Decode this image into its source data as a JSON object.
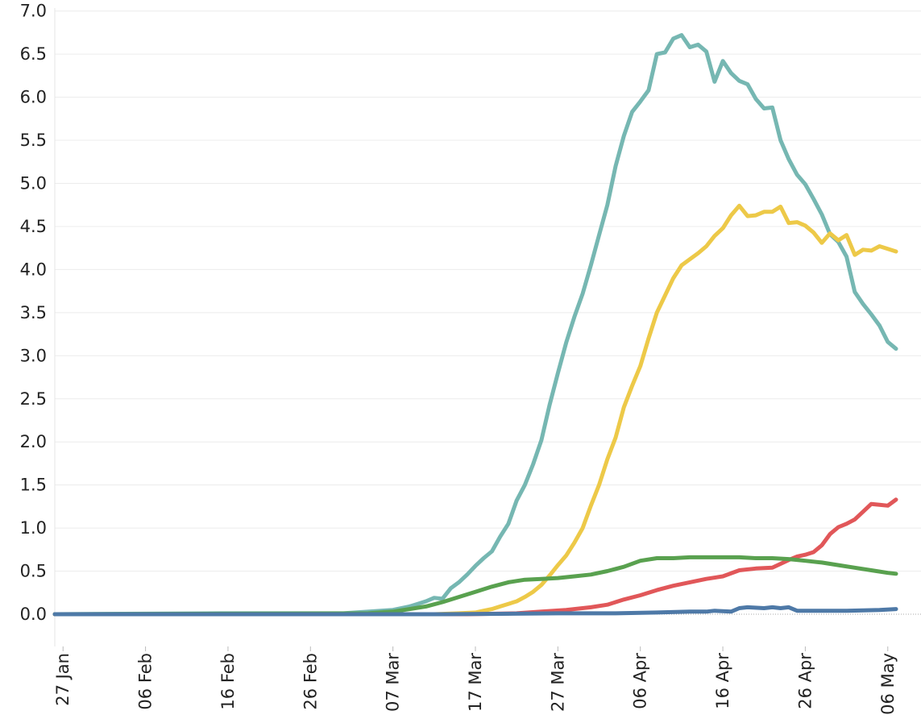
{
  "chart_data": {
    "type": "line",
    "title": "",
    "xlabel": "",
    "ylabel": "",
    "x_start": "2020-01-26",
    "x_end": "2020-05-07",
    "xlim": [
      "2020-01-26",
      "2020-05-07"
    ],
    "ylim": [
      -0.4,
      7.0
    ],
    "y_ticks": [
      "0.0",
      "0.5",
      "1.0",
      "1.5",
      "2.0",
      "2.5",
      "3.0",
      "3.5",
      "4.0",
      "4.5",
      "5.0",
      "5.5",
      "6.0",
      "6.5",
      "7.0"
    ],
    "x_tick_labels": [
      "27 Jan",
      "06 Feb",
      "16 Feb",
      "26 Feb",
      "07 Mar",
      "17 Mar",
      "27 Mar",
      "06 Apr",
      "16 Apr",
      "26 Apr",
      "06 May"
    ],
    "x_tick_dates": [
      "2020-01-27",
      "2020-02-06",
      "2020-02-16",
      "2020-02-26",
      "2020-03-07",
      "2020-03-17",
      "2020-03-27",
      "2020-04-06",
      "2020-04-16",
      "2020-04-26",
      "2020-05-06"
    ],
    "grid": true,
    "legend": "none",
    "series": [
      {
        "color": "#76b7b2",
        "points": [
          [
            "2020-01-26",
            0
          ],
          [
            "2020-02-15",
            0.01
          ],
          [
            "2020-03-01",
            0.01
          ],
          [
            "2020-03-07",
            0.05
          ],
          [
            "2020-03-09",
            0.09
          ],
          [
            "2020-03-10",
            0.12
          ],
          [
            "2020-03-11",
            0.15
          ],
          [
            "2020-03-12",
            0.19
          ],
          [
            "2020-03-13",
            0.18
          ],
          [
            "2020-03-14",
            0.3
          ],
          [
            "2020-03-15",
            0.37
          ],
          [
            "2020-03-16",
            0.46
          ],
          [
            "2020-03-17",
            0.56
          ],
          [
            "2020-03-18",
            0.65
          ],
          [
            "2020-03-19",
            0.73
          ],
          [
            "2020-03-20",
            0.9
          ],
          [
            "2020-03-21",
            1.05
          ],
          [
            "2020-03-22",
            1.32
          ],
          [
            "2020-03-23",
            1.5
          ],
          [
            "2020-03-24",
            1.74
          ],
          [
            "2020-03-25",
            2.02
          ],
          [
            "2020-03-26",
            2.43
          ],
          [
            "2020-03-27",
            2.8
          ],
          [
            "2020-03-28",
            3.15
          ],
          [
            "2020-03-29",
            3.45
          ],
          [
            "2020-03-30",
            3.72
          ],
          [
            "2020-03-31",
            4.05
          ],
          [
            "2020-04-01",
            4.4
          ],
          [
            "2020-04-02",
            4.75
          ],
          [
            "2020-04-03",
            5.2
          ],
          [
            "2020-04-04",
            5.55
          ],
          [
            "2020-04-05",
            5.83
          ],
          [
            "2020-04-06",
            5.95
          ],
          [
            "2020-04-07",
            6.08
          ],
          [
            "2020-04-08",
            6.5
          ],
          [
            "2020-04-09",
            6.52
          ],
          [
            "2020-04-10",
            6.68
          ],
          [
            "2020-04-11",
            6.72
          ],
          [
            "2020-04-12",
            6.58
          ],
          [
            "2020-04-13",
            6.61
          ],
          [
            "2020-04-14",
            6.53
          ],
          [
            "2020-04-15",
            6.18
          ],
          [
            "2020-04-16",
            6.42
          ],
          [
            "2020-04-17",
            6.28
          ],
          [
            "2020-04-18",
            6.19
          ],
          [
            "2020-04-19",
            6.15
          ],
          [
            "2020-04-20",
            5.98
          ],
          [
            "2020-04-21",
            5.87
          ],
          [
            "2020-04-22",
            5.88
          ],
          [
            "2020-04-23",
            5.5
          ],
          [
            "2020-04-24",
            5.28
          ],
          [
            "2020-04-25",
            5.1
          ],
          [
            "2020-04-26",
            4.99
          ],
          [
            "2020-04-27",
            4.82
          ],
          [
            "2020-04-28",
            4.64
          ],
          [
            "2020-04-29",
            4.41
          ],
          [
            "2020-04-30",
            4.32
          ],
          [
            "2020-05-01",
            4.15
          ],
          [
            "2020-05-02",
            3.74
          ],
          [
            "2020-05-03",
            3.6
          ],
          [
            "2020-05-04",
            3.48
          ],
          [
            "2020-05-05",
            3.35
          ],
          [
            "2020-05-06",
            3.16
          ],
          [
            "2020-05-07",
            3.08
          ]
        ]
      },
      {
        "color": "#edc948",
        "points": [
          [
            "2020-01-26",
            0
          ],
          [
            "2020-03-12",
            0.0
          ],
          [
            "2020-03-15",
            0.01
          ],
          [
            "2020-03-17",
            0.02
          ],
          [
            "2020-03-18",
            0.04
          ],
          [
            "2020-03-19",
            0.06
          ],
          [
            "2020-03-20",
            0.09
          ],
          [
            "2020-03-21",
            0.12
          ],
          [
            "2020-03-22",
            0.15
          ],
          [
            "2020-03-23",
            0.2
          ],
          [
            "2020-03-24",
            0.26
          ],
          [
            "2020-03-25",
            0.34
          ],
          [
            "2020-03-26",
            0.45
          ],
          [
            "2020-03-27",
            0.57
          ],
          [
            "2020-03-28",
            0.68
          ],
          [
            "2020-03-29",
            0.83
          ],
          [
            "2020-03-30",
            1.0
          ],
          [
            "2020-03-31",
            1.26
          ],
          [
            "2020-04-01",
            1.5
          ],
          [
            "2020-04-02",
            1.8
          ],
          [
            "2020-04-03",
            2.05
          ],
          [
            "2020-04-04",
            2.4
          ],
          [
            "2020-04-05",
            2.65
          ],
          [
            "2020-04-06",
            2.88
          ],
          [
            "2020-04-07",
            3.2
          ],
          [
            "2020-04-08",
            3.5
          ],
          [
            "2020-04-09",
            3.7
          ],
          [
            "2020-04-10",
            3.9
          ],
          [
            "2020-04-11",
            4.05
          ],
          [
            "2020-04-12",
            4.12
          ],
          [
            "2020-04-13",
            4.19
          ],
          [
            "2020-04-14",
            4.27
          ],
          [
            "2020-04-15",
            4.39
          ],
          [
            "2020-04-16",
            4.48
          ],
          [
            "2020-04-17",
            4.63
          ],
          [
            "2020-04-18",
            4.74
          ],
          [
            "2020-04-19",
            4.62
          ],
          [
            "2020-04-20",
            4.63
          ],
          [
            "2020-04-21",
            4.67
          ],
          [
            "2020-04-22",
            4.67
          ],
          [
            "2020-04-23",
            4.73
          ],
          [
            "2020-04-24",
            4.54
          ],
          [
            "2020-04-25",
            4.55
          ],
          [
            "2020-04-26",
            4.51
          ],
          [
            "2020-04-27",
            4.43
          ],
          [
            "2020-04-28",
            4.31
          ],
          [
            "2020-04-29",
            4.42
          ],
          [
            "2020-04-30",
            4.34
          ],
          [
            "2020-05-01",
            4.4
          ],
          [
            "2020-05-02",
            4.17
          ],
          [
            "2020-05-03",
            4.23
          ],
          [
            "2020-05-04",
            4.22
          ],
          [
            "2020-05-05",
            4.27
          ],
          [
            "2020-05-06",
            4.24
          ],
          [
            "2020-05-07",
            4.21
          ]
        ]
      },
      {
        "color": "#e15759",
        "points": [
          [
            "2020-01-26",
            0
          ],
          [
            "2020-03-16",
            0.0
          ],
          [
            "2020-03-22",
            0.01
          ],
          [
            "2020-03-25",
            0.03
          ],
          [
            "2020-03-28",
            0.05
          ],
          [
            "2020-03-31",
            0.08
          ],
          [
            "2020-04-02",
            0.11
          ],
          [
            "2020-04-04",
            0.17
          ],
          [
            "2020-04-06",
            0.22
          ],
          [
            "2020-04-08",
            0.28
          ],
          [
            "2020-04-10",
            0.33
          ],
          [
            "2020-04-12",
            0.37
          ],
          [
            "2020-04-14",
            0.41
          ],
          [
            "2020-04-16",
            0.44
          ],
          [
            "2020-04-18",
            0.51
          ],
          [
            "2020-04-20",
            0.53
          ],
          [
            "2020-04-22",
            0.54
          ],
          [
            "2020-04-24",
            0.63
          ],
          [
            "2020-04-25",
            0.67
          ],
          [
            "2020-04-26",
            0.69
          ],
          [
            "2020-04-27",
            0.72
          ],
          [
            "2020-04-28",
            0.8
          ],
          [
            "2020-04-29",
            0.93
          ],
          [
            "2020-04-30",
            1.01
          ],
          [
            "2020-05-01",
            1.05
          ],
          [
            "2020-05-02",
            1.1
          ],
          [
            "2020-05-03",
            1.19
          ],
          [
            "2020-05-04",
            1.28
          ],
          [
            "2020-05-05",
            1.27
          ],
          [
            "2020-05-06",
            1.26
          ],
          [
            "2020-05-07",
            1.33
          ]
        ]
      },
      {
        "color": "#59a14f",
        "points": [
          [
            "2020-01-26",
            0
          ],
          [
            "2020-03-04",
            0.01
          ],
          [
            "2020-03-07",
            0.03
          ],
          [
            "2020-03-09",
            0.06
          ],
          [
            "2020-03-11",
            0.09
          ],
          [
            "2020-03-13",
            0.14
          ],
          [
            "2020-03-15",
            0.2
          ],
          [
            "2020-03-17",
            0.26
          ],
          [
            "2020-03-19",
            0.32
          ],
          [
            "2020-03-21",
            0.37
          ],
          [
            "2020-03-23",
            0.4
          ],
          [
            "2020-03-25",
            0.41
          ],
          [
            "2020-03-27",
            0.42
          ],
          [
            "2020-03-29",
            0.44
          ],
          [
            "2020-03-31",
            0.46
          ],
          [
            "2020-04-02",
            0.5
          ],
          [
            "2020-04-04",
            0.55
          ],
          [
            "2020-04-06",
            0.62
          ],
          [
            "2020-04-08",
            0.65
          ],
          [
            "2020-04-10",
            0.65
          ],
          [
            "2020-04-12",
            0.66
          ],
          [
            "2020-04-14",
            0.66
          ],
          [
            "2020-04-16",
            0.66
          ],
          [
            "2020-04-18",
            0.66
          ],
          [
            "2020-04-20",
            0.65
          ],
          [
            "2020-04-22",
            0.65
          ],
          [
            "2020-04-24",
            0.64
          ],
          [
            "2020-04-26",
            0.62
          ],
          [
            "2020-04-28",
            0.6
          ],
          [
            "2020-04-30",
            0.57
          ],
          [
            "2020-05-02",
            0.54
          ],
          [
            "2020-05-04",
            0.51
          ],
          [
            "2020-05-06",
            0.48
          ],
          [
            "2020-05-07",
            0.47
          ]
        ]
      },
      {
        "color": "#4e79a7",
        "points": [
          [
            "2020-01-26",
            0
          ],
          [
            "2020-03-13",
            0.0
          ],
          [
            "2020-03-20",
            0.005
          ],
          [
            "2020-03-27",
            0.01
          ],
          [
            "2020-04-03",
            0.01
          ],
          [
            "2020-04-08",
            0.02
          ],
          [
            "2020-04-12",
            0.03
          ],
          [
            "2020-04-14",
            0.03
          ],
          [
            "2020-04-15",
            0.04
          ],
          [
            "2020-04-17",
            0.03
          ],
          [
            "2020-04-18",
            0.07
          ],
          [
            "2020-04-19",
            0.08
          ],
          [
            "2020-04-21",
            0.07
          ],
          [
            "2020-04-22",
            0.08
          ],
          [
            "2020-04-23",
            0.07
          ],
          [
            "2020-04-24",
            0.08
          ],
          [
            "2020-04-25",
            0.04
          ],
          [
            "2020-04-27",
            0.04
          ],
          [
            "2020-05-01",
            0.04
          ],
          [
            "2020-05-05",
            0.05
          ],
          [
            "2020-05-07",
            0.06
          ]
        ]
      }
    ]
  }
}
